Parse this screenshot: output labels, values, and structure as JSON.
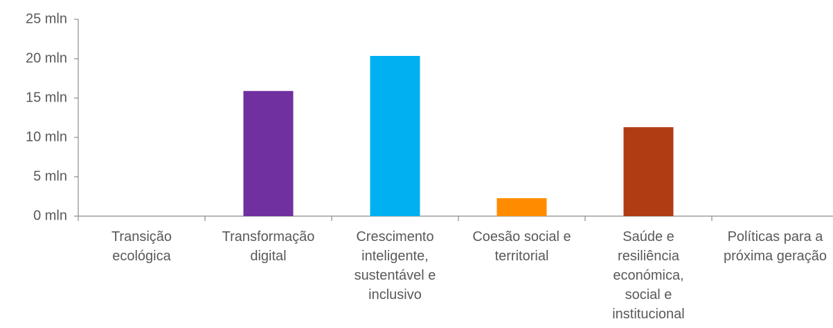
{
  "chart_data": {
    "type": "bar",
    "categories": [
      "Transição ecológica",
      "Transformação digital",
      "Crescimento inteligente, sustentável e inclusivo",
      "Coesão social e territorial",
      "Saúde e resiliência económica, social e institucional",
      "Políticas para a próxima geração"
    ],
    "values": [
      0,
      15.9,
      20.35,
      2.28,
      11.3,
      0
    ],
    "colors": [
      "#7030a0",
      "#7030a0",
      "#00b0f0",
      "#ff8c00",
      "#b03c14",
      "#7030a0"
    ],
    "ylim": [
      0,
      25
    ],
    "yticks": [
      {
        "value": 0,
        "label": "0 mln"
      },
      {
        "value": 5,
        "label": "5 mln"
      },
      {
        "value": 10,
        "label": "10 mln"
      },
      {
        "value": 15,
        "label": "15 mln"
      },
      {
        "value": 20,
        "label": "20 mln"
      },
      {
        "value": 25,
        "label": "25 mln"
      }
    ],
    "grid": false
  }
}
